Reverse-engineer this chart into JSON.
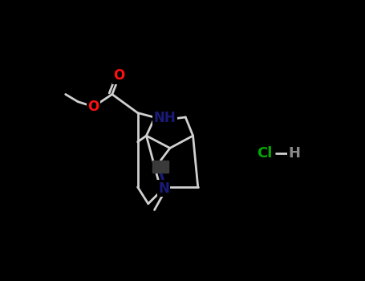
{
  "background_color": "#000000",
  "bond_color": "#d0d0d0",
  "atom_O_color": "#ff1010",
  "atom_N_color": "#1a1a7a",
  "atom_Cl_color": "#00aa00",
  "atom_H_color": "#888888",
  "atom_stereo_color": "#3a3a3a",
  "bond_width": 2.0,
  "figsize": [
    4.55,
    3.5
  ],
  "dpi": 100,
  "xlim": [
    0,
    455
  ],
  "ylim": [
    0,
    350
  ]
}
